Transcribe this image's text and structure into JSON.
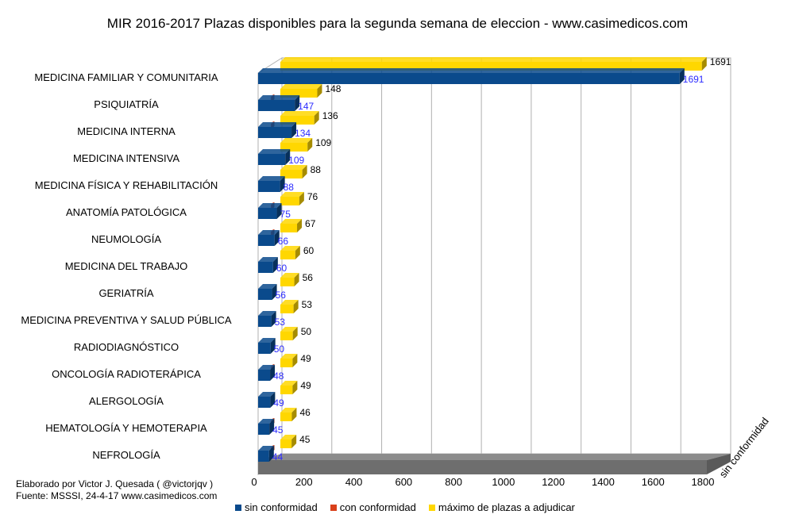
{
  "title": "MIR 2016-2017 Plazas disponibles para la segunda semana de eleccion - www.casimedicos.com",
  "footer": {
    "line1": "Elaborado por Victor J. Quesada ( @victorjqv )",
    "line2": "Fuente: MSSSI, 24-4-17 www.casimedicos.com"
  },
  "colors": {
    "sin_conformidad": "#0a4a8c",
    "con_conformidad": "#d9401a",
    "maximo": "#ffd700"
  },
  "chart_data": {
    "type": "bar",
    "orientation": "horizontal",
    "title": "MIR 2016-2017 Plazas disponibles para la segunda semana de eleccion - www.casimedicos.com",
    "categories": [
      "MEDICINA FAMILIAR Y COMUNITARIA",
      "PSIQUIATRÍA",
      "MEDICINA INTERNA",
      "MEDICINA INTENSIVA",
      "MEDICINA FÍSICA Y REHABILITACIÓN",
      "ANATOMÍA PATOLÓGICA",
      "NEUMOLOGÍA",
      "MEDICINA DEL TRABAJO",
      "GERIATRÍA",
      "MEDICINA PREVENTIVA Y SALUD PÚBLICA",
      "RADIODIAGNÓSTICO",
      "ONCOLOGÍA RADIOTERÁPICA",
      "ALERGOLOGÍA",
      "HEMATOLOGÍA Y HEMOTERAPIA",
      "NEFROLOGÍA"
    ],
    "series": [
      {
        "name": "sin conformidad",
        "values": [
          1691,
          147,
          134,
          109,
          88,
          75,
          66,
          60,
          56,
          53,
          50,
          48,
          49,
          45,
          44
        ]
      },
      {
        "name": "con conformidad",
        "values": [
          0,
          1,
          2,
          0,
          0,
          1,
          1,
          0,
          0,
          0,
          0,
          1,
          0,
          1,
          1
        ]
      },
      {
        "name": "máximo de plazas a adjudicar",
        "values": [
          1691,
          148,
          136,
          109,
          88,
          76,
          67,
          60,
          56,
          53,
          50,
          49,
          49,
          46,
          45
        ]
      }
    ],
    "xlim": [
      0,
      1800
    ],
    "xticks": [
      "0",
      "200",
      "400",
      "600",
      "800",
      "1000",
      "1200",
      "1400",
      "1600",
      "1800"
    ],
    "depth_axis_label": "sin conformidad",
    "grid": true,
    "legend_position": "bottom"
  }
}
